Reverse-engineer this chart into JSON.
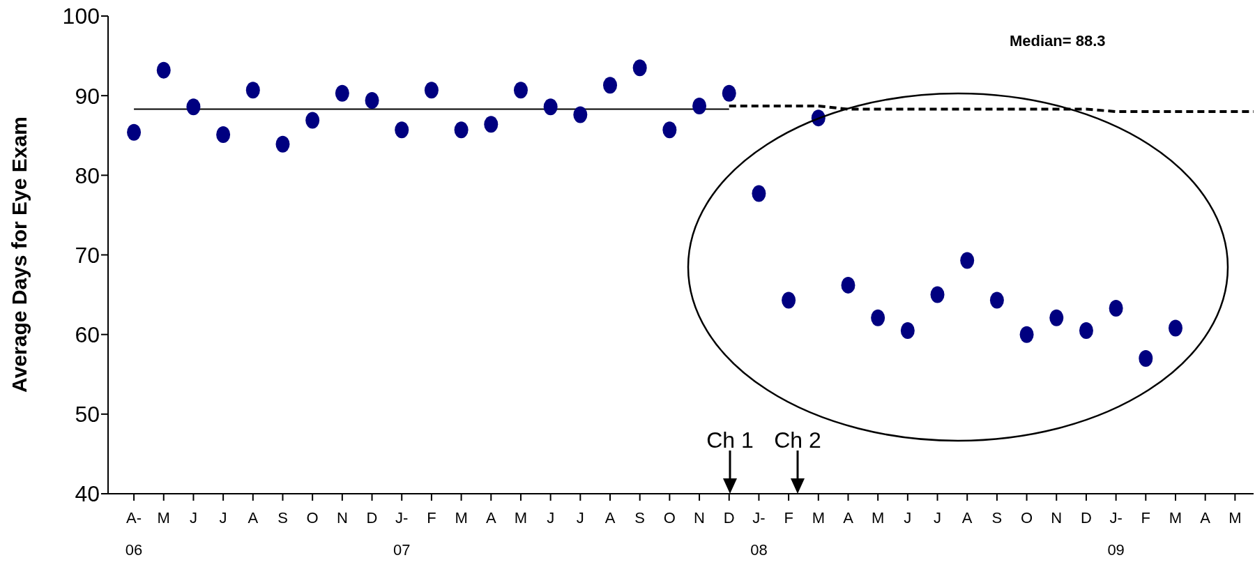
{
  "chart_data": {
    "type": "scatter",
    "ylabel": "Average Days for Eye Exam",
    "series": [
      {
        "color": "#000080",
        "marker": "circle",
        "x": [
          "2006-04",
          "2006-05",
          "2006-06",
          "2006-07",
          "2006-08",
          "2006-09",
          "2006-10",
          "2006-11",
          "2006-12",
          "2007-01",
          "2007-02",
          "2007-03",
          "2007-04",
          "2007-05",
          "2007-06",
          "2007-07",
          "2007-08",
          "2007-09",
          "2007-10",
          "2007-11",
          "2007-12",
          "2008-01",
          "2008-02",
          "2008-03",
          "2008-04",
          "2008-05",
          "2008-06",
          "2008-07",
          "2008-08",
          "2008-09",
          "2008-10",
          "2008-11",
          "2008-12",
          "2009-01",
          "2009-02",
          "2009-03"
        ],
        "values": [
          85.4,
          93.2,
          88.6,
          85.1,
          90.7,
          83.9,
          86.9,
          90.3,
          89.4,
          85.7,
          90.7,
          85.7,
          86.4,
          90.7,
          88.6,
          87.6,
          91.3,
          93.5,
          85.7,
          88.7,
          90.3,
          77.7,
          64.3,
          87.2,
          66.2,
          62.1,
          60.5,
          65.0,
          69.3,
          64.3,
          60.0,
          62.1,
          60.5,
          63.3,
          57.0,
          60.8
        ]
      },
      {
        "type": "line",
        "color": "#000000",
        "line_style": "solid",
        "x": [
          "2006-04",
          "2007-12"
        ],
        "values": [
          88.3,
          88.3
        ]
      },
      {
        "type": "line",
        "color": "#000000",
        "line_style": "dashed",
        "x": [
          "2007-12",
          "2008-03",
          "2008-04",
          "2008-12",
          "2009-01",
          "2009-05-20"
        ],
        "values": [
          88.7,
          88.7,
          88.3,
          88.3,
          88.0,
          88.0
        ]
      }
    ],
    "xlim": [
      "2006-03-05",
      "2009-05-20"
    ],
    "xticks": [
      {
        "value": "2006-04",
        "label": "A-\n06"
      },
      {
        "value": "2006-05",
        "label": "M"
      },
      {
        "value": "2006-06",
        "label": "J"
      },
      {
        "value": "2006-07",
        "label": "J"
      },
      {
        "value": "2006-08",
        "label": "A"
      },
      {
        "value": "2006-09",
        "label": "S"
      },
      {
        "value": "2006-10",
        "label": "O"
      },
      {
        "value": "2006-11",
        "label": "N"
      },
      {
        "value": "2006-12",
        "label": "D"
      },
      {
        "value": "2007-01",
        "label": "J-\n07"
      },
      {
        "value": "2007-02",
        "label": "F"
      },
      {
        "value": "2007-03",
        "label": "M"
      },
      {
        "value": "2007-04",
        "label": "A"
      },
      {
        "value": "2007-05",
        "label": "M"
      },
      {
        "value": "2007-06",
        "label": "J"
      },
      {
        "value": "2007-07",
        "label": "J"
      },
      {
        "value": "2007-08",
        "label": "A"
      },
      {
        "value": "2007-09",
        "label": "S"
      },
      {
        "value": "2007-10",
        "label": "O"
      },
      {
        "value": "2007-11",
        "label": "N"
      },
      {
        "value": "2007-12",
        "label": "D"
      },
      {
        "value": "2008-01",
        "label": "J-\n08"
      },
      {
        "value": "2008-02",
        "label": "F"
      },
      {
        "value": "2008-03",
        "label": "M"
      },
      {
        "value": "2008-04",
        "label": "A"
      },
      {
        "value": "2008-05",
        "label": "M"
      },
      {
        "value": "2008-06",
        "label": "J"
      },
      {
        "value": "2008-07",
        "label": "J"
      },
      {
        "value": "2008-08",
        "label": "A"
      },
      {
        "value": "2008-09",
        "label": "S"
      },
      {
        "value": "2008-10",
        "label": "O"
      },
      {
        "value": "2008-11",
        "label": "N"
      },
      {
        "value": "2008-12",
        "label": "D"
      },
      {
        "value": "2009-01",
        "label": "J-\n09"
      },
      {
        "value": "2009-02",
        "label": "F"
      },
      {
        "value": "2009-03",
        "label": "M"
      },
      {
        "value": "2009-04",
        "label": "A"
      },
      {
        "value": "2009-05",
        "label": "M"
      }
    ],
    "ylim": [
      40,
      100
    ],
    "yticks": [
      40,
      50,
      60,
      70,
      80,
      90,
      100
    ],
    "grid": false,
    "annotations": [
      "Median= 88.3",
      "Ch 1",
      "Ch 2"
    ]
  }
}
